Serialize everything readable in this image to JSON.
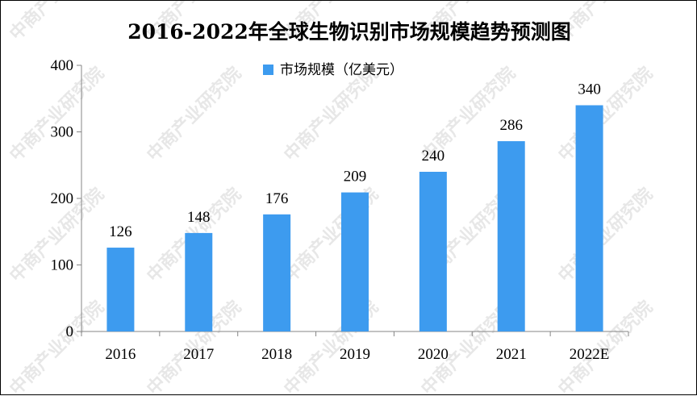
{
  "chart_data": {
    "type": "bar",
    "title": "2016-2022年全球生物识别市场规模趋势预测图",
    "categories": [
      "2016",
      "2017",
      "2018",
      "2019",
      "2020",
      "2021",
      "2022E"
    ],
    "series": [
      {
        "name": "市场规模（亿美元）",
        "values": [
          126,
          148,
          176,
          209,
          240,
          286,
          340
        ],
        "color": "#3d9bef"
      }
    ],
    "ylim": [
      0,
      400
    ],
    "yticks": [
      0,
      100,
      200,
      300,
      400
    ],
    "xlabel": "",
    "ylabel": "",
    "grid": false,
    "legend_position": "top-center",
    "data_labels": true
  },
  "watermark": {
    "text": "中商产业研究院"
  }
}
